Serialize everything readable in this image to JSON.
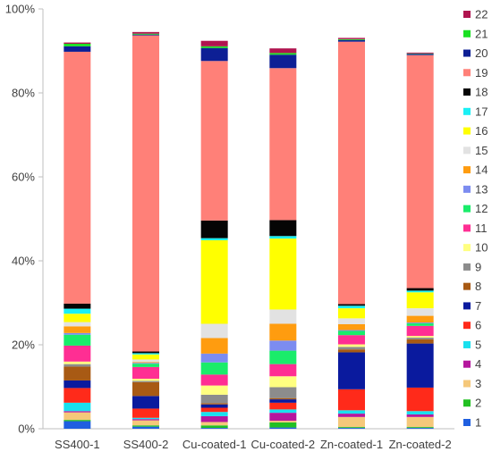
{
  "chart_data": {
    "type": "bar",
    "stacked": true,
    "title": "",
    "xlabel": "",
    "ylabel": "",
    "ylim": [
      0,
      100
    ],
    "y_tick_values": [
      0,
      20,
      40,
      60,
      80,
      100
    ],
    "y_tick_labels": [
      "0%",
      "20%",
      "40%",
      "60%",
      "80%",
      "100%"
    ],
    "grid": false,
    "legend_position": "right",
    "categories": [
      "SS400-1",
      "SS400-2",
      "Cu-coated-1",
      "Cu-coated-2",
      "Zn-coated-1",
      "Zn-coated-2"
    ],
    "series": [
      {
        "name": "1",
        "color": "#1f5fe0",
        "values": [
          1.8,
          0.5,
          0.2,
          0.3,
          0.2,
          0.2
        ]
      },
      {
        "name": "2",
        "color": "#22c022",
        "values": [
          0.3,
          0.3,
          0.6,
          1.2,
          0.2,
          0.2
        ]
      },
      {
        "name": "3",
        "color": "#f5c87a",
        "values": [
          1.8,
          1.2,
          0.8,
          0.4,
          2.4,
          2.4
        ]
      },
      {
        "name": "4",
        "color": "#b5179e",
        "values": [
          0.3,
          0.3,
          1.4,
          1.9,
          0.8,
          0.6
        ]
      },
      {
        "name": "5",
        "color": "#1ae0ee",
        "values": [
          2.0,
          0.3,
          1.0,
          0.8,
          0.8,
          0.8
        ]
      },
      {
        "name": "6",
        "color": "#ff2a1a",
        "values": [
          3.5,
          2.2,
          1.0,
          1.6,
          5.0,
          5.6
        ]
      },
      {
        "name": "7",
        "color": "#0a1a9e",
        "values": [
          1.8,
          3.0,
          0.8,
          0.8,
          8.8,
          10.5
        ]
      },
      {
        "name": "8",
        "color": "#a85a14",
        "values": [
          3.3,
          3.3,
          0.3,
          0.3,
          0.7,
          1.0
        ]
      },
      {
        "name": "9",
        "color": "#8c8c8c",
        "values": [
          0.6,
          0.3,
          2.0,
          2.6,
          0.6,
          0.4
        ]
      },
      {
        "name": "10",
        "color": "#ffff80",
        "values": [
          0.6,
          0.5,
          2.2,
          2.6,
          0.6,
          0.4
        ]
      },
      {
        "name": "11",
        "color": "#ff2e93",
        "values": [
          3.8,
          2.8,
          2.6,
          2.9,
          2.2,
          2.4
        ]
      },
      {
        "name": "12",
        "color": "#1aec6a",
        "values": [
          2.6,
          0.8,
          2.9,
          3.2,
          1.0,
          0.6
        ]
      },
      {
        "name": "13",
        "color": "#7c8cf0",
        "values": [
          0.4,
          0.2,
          2.1,
          2.4,
          0.2,
          0.2
        ]
      },
      {
        "name": "14",
        "color": "#ff9c0f",
        "values": [
          1.6,
          0.2,
          3.7,
          4.0,
          1.4,
          1.6
        ]
      },
      {
        "name": "15",
        "color": "#e2e2e2",
        "values": [
          1.0,
          0.6,
          3.4,
          3.4,
          1.4,
          1.8
        ]
      },
      {
        "name": "16",
        "color": "#ffff00",
        "values": [
          2.0,
          1.2,
          19.9,
          16.9,
          2.4,
          3.8
        ]
      },
      {
        "name": "17",
        "color": "#1af0f5",
        "values": [
          1.2,
          0.3,
          0.5,
          0.6,
          0.6,
          0.4
        ]
      },
      {
        "name": "18",
        "color": "#050505",
        "values": [
          1.2,
          0.4,
          4.2,
          3.8,
          0.4,
          0.6
        ]
      },
      {
        "name": "19",
        "color": "#ff8078",
        "values": [
          60.0,
          75.3,
          38.0,
          36.2,
          62.5,
          55.5
        ]
      },
      {
        "name": "20",
        "color": "#0d1f95",
        "values": [
          1.3,
          0.2,
          3.1,
          3.2,
          0.4,
          0.3
        ]
      },
      {
        "name": "21",
        "color": "#1ae022",
        "values": [
          0.6,
          0.2,
          0.4,
          0.4,
          0.2,
          0.1
        ]
      },
      {
        "name": "22",
        "color": "#b0144f",
        "values": [
          0.3,
          0.4,
          1.3,
          1.1,
          0.3,
          0.2
        ]
      }
    ]
  }
}
